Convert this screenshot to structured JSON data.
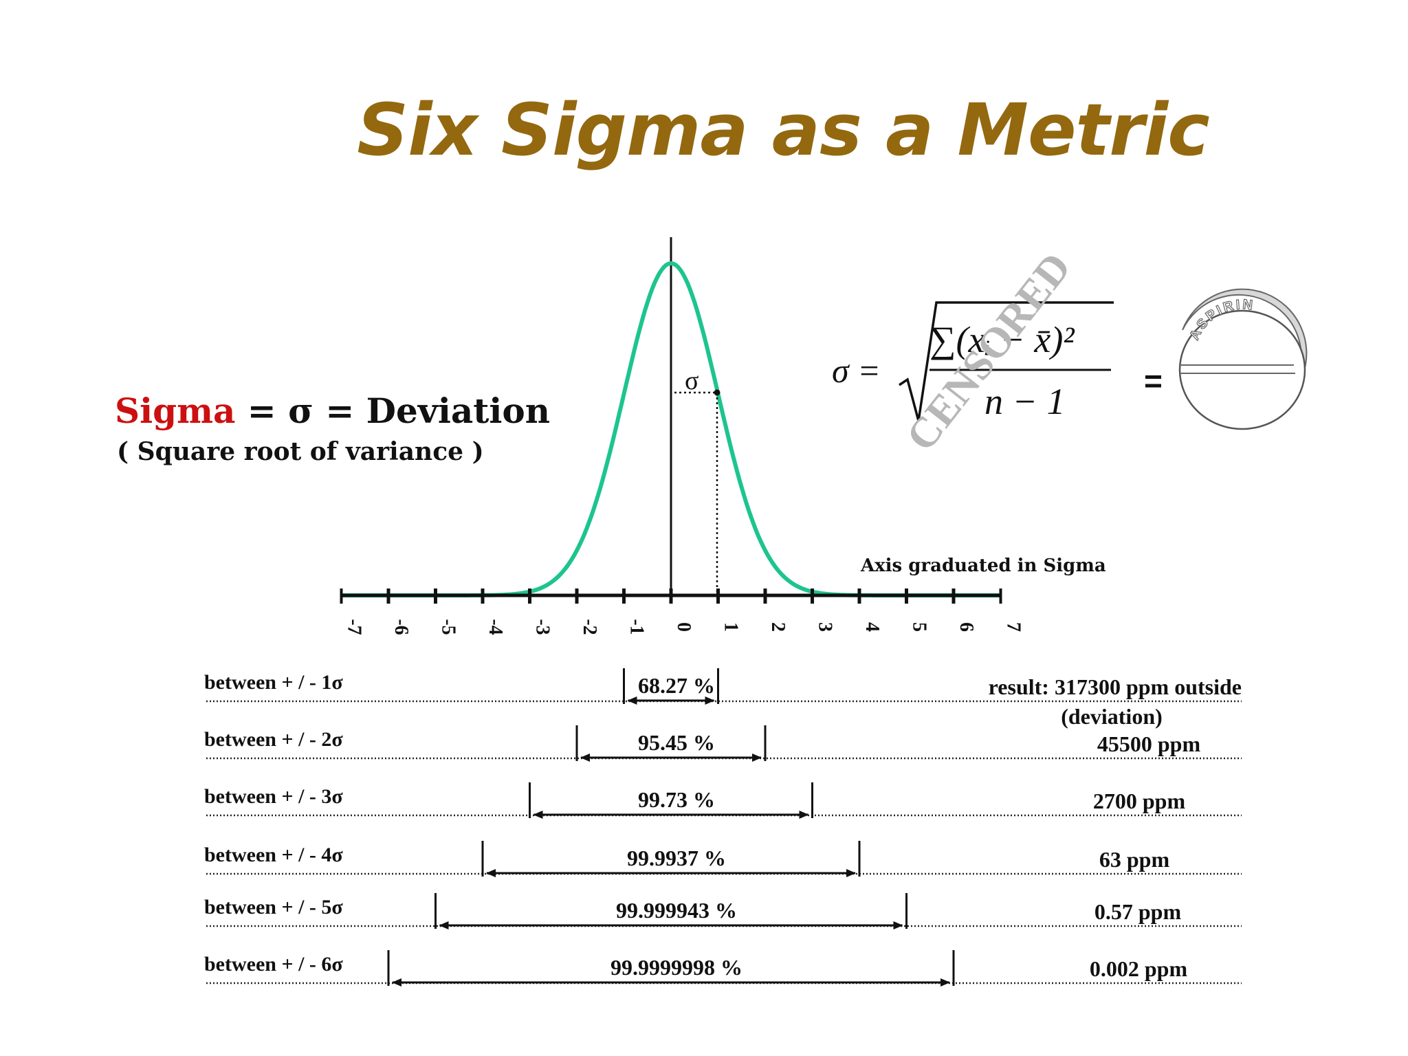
{
  "title": "Six Sigma as a Metric",
  "colors": {
    "title": "#93680f",
    "curve": "#1ec48f",
    "sigma_word": "#cc1010",
    "watermark": "#b7b7b7"
  },
  "definition": {
    "sigma_word": "Sigma",
    "rest": " = σ = Deviation",
    "note": "( Square root of variance )"
  },
  "formula": {
    "lhs": "σ =",
    "numerator": "∑(xᵢ − x̄)²",
    "denominator": "n − 1",
    "equals": "=",
    "watermark": "CENSORED",
    "pill_label": "ASPIRIN"
  },
  "sigma_marker": "σ",
  "axis": {
    "caption": "Axis graduated in Sigma",
    "ticks": [
      "-7",
      "-6",
      "-5",
      "-4",
      "-3",
      "-2",
      "-1",
      "0",
      "1",
      "2",
      "3",
      "4",
      "5",
      "6",
      "7"
    ]
  },
  "rows": [
    {
      "label": "between + / - 1σ",
      "k": 1,
      "percent": "68.27 %",
      "ppm": "result:  317300  ppm outside",
      "note": "(deviation)"
    },
    {
      "label": "between  + / - 2σ",
      "k": 2,
      "percent": "95.45 %",
      "ppm": "45500  ppm"
    },
    {
      "label": "between  + / - 3σ",
      "k": 3,
      "percent": "99.73 %",
      "ppm": "2700  ppm"
    },
    {
      "label": "between  + / - 4σ",
      "k": 4,
      "percent": "99.9937 %",
      "ppm": "63  ppm"
    },
    {
      "label": "between  + / - 5σ",
      "k": 5,
      "percent": "99.999943 %",
      "ppm": "0.57  ppm"
    },
    {
      "label": "between  + / - 6σ",
      "k": 6,
      "percent": "99.9999998 %",
      "ppm": "0.002  ppm"
    }
  ]
}
